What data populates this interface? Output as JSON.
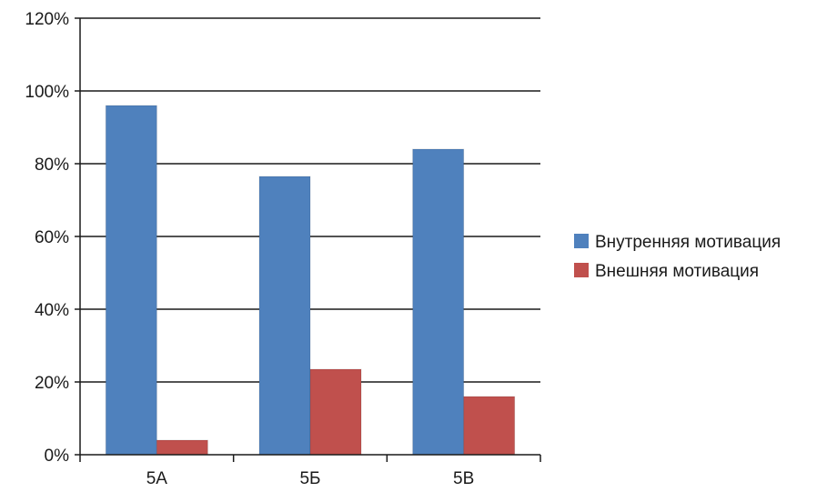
{
  "chart_data": {
    "type": "bar",
    "categories": [
      "5А",
      "5Б",
      "5В"
    ],
    "series": [
      {
        "name": "Внутренняя мотивация",
        "color": "#4f81bd",
        "values": [
          96,
          76.5,
          84
        ]
      },
      {
        "name": "Внешняя мотивация",
        "color": "#c0504d",
        "values": [
          4,
          23.5,
          16
        ]
      }
    ],
    "y_ticks": [
      "0%",
      "20%",
      "40%",
      "60%",
      "80%",
      "100%",
      "120%"
    ],
    "ylim": [
      0,
      120
    ],
    "y_unit": "%",
    "grid": true,
    "legend_position": "right"
  }
}
